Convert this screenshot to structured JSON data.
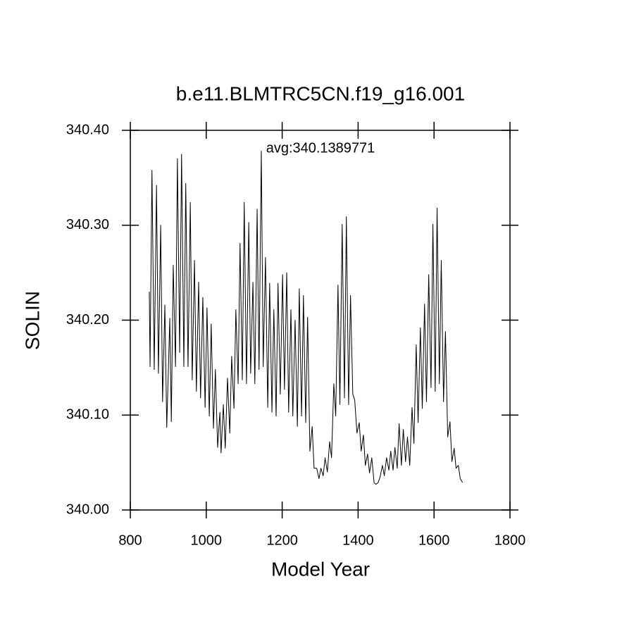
{
  "chart_data": {
    "type": "line",
    "title": "b.e11.BLMTRC5CN.f19_g16.001",
    "annotation": "avg:340.1389771",
    "x_label": "Model Year",
    "y_label": "SOLIN",
    "xlim": [
      800,
      1800
    ],
    "xticks": [
      800,
      1000,
      1200,
      1400,
      1600,
      1800
    ],
    "ylim": [
      340,
      340.4
    ],
    "yticks": [
      {
        "value": 340,
        "label": "340.00"
      },
      {
        "value": 340.1,
        "label": "340.10"
      },
      {
        "value": 340.2,
        "label": "340.20"
      },
      {
        "value": 340.3,
        "label": "340.30"
      },
      {
        "value": 340.4,
        "label": "340.40"
      }
    ],
    "series": [
      {
        "color": "#000000",
        "x": [
          850,
          852,
          857,
          863,
          869,
          874,
          880,
          885,
          891,
          896,
          904,
          908,
          913,
          919,
          924,
          930,
          935,
          941,
          946,
          952,
          958,
          963,
          969,
          974,
          980,
          985,
          991,
          997,
          1002,
          1008,
          1013,
          1019,
          1024,
          1030,
          1036,
          1039,
          1045,
          1050,
          1056,
          1062,
          1067,
          1073,
          1078,
          1084,
          1089,
          1095,
          1100,
          1106,
          1112,
          1117,
          1123,
          1128,
          1134,
          1139,
          1145,
          1150,
          1156,
          1162,
          1167,
          1173,
          1178,
          1184,
          1189,
          1195,
          1201,
          1206,
          1212,
          1217,
          1223,
          1228,
          1234,
          1240,
          1245,
          1251,
          1256,
          1262,
          1267,
          1273,
          1279,
          1284,
          1291,
          1297,
          1302,
          1308,
          1313,
          1319,
          1325,
          1330,
          1336,
          1341,
          1347,
          1352,
          1358,
          1364,
          1369,
          1375,
          1380,
          1386,
          1391,
          1397,
          1403,
          1408,
          1414,
          1419,
          1425,
          1430,
          1436,
          1442,
          1447,
          1453,
          1458,
          1464,
          1469,
          1475,
          1481,
          1486,
          1492,
          1497,
          1503,
          1508,
          1514,
          1519,
          1525,
          1530,
          1536,
          1542,
          1547,
          1553,
          1558,
          1564,
          1569,
          1575,
          1580,
          1586,
          1592,
          1597,
          1603,
          1608,
          1614,
          1619,
          1625,
          1630,
          1636,
          1642,
          1647,
          1653,
          1658,
          1664,
          1669,
          1675
        ],
        "values": [
          340.23,
          340.151,
          340.358,
          340.148,
          340.342,
          340.144,
          340.3,
          340.114,
          340.216,
          340.087,
          340.202,
          340.093,
          340.258,
          340.151,
          340.37,
          340.166,
          340.375,
          340.151,
          340.344,
          340.151,
          340.324,
          340.137,
          340.263,
          340.125,
          340.24,
          340.118,
          340.224,
          340.108,
          340.213,
          340.099,
          340.196,
          340.086,
          340.148,
          340.066,
          340.103,
          340.06,
          340.111,
          340.065,
          340.139,
          340.081,
          340.162,
          340.107,
          340.211,
          340.133,
          340.281,
          340.137,
          340.324,
          340.133,
          340.303,
          340.144,
          340.24,
          340.133,
          340.317,
          340.148,
          340.378,
          340.151,
          340.266,
          340.108,
          340.239,
          340.103,
          340.211,
          340.099,
          340.239,
          340.122,
          340.248,
          340.127,
          340.25,
          340.103,
          340.211,
          340.099,
          340.2,
          340.088,
          340.233,
          340.099,
          340.226,
          340.092,
          340.203,
          340.062,
          340.088,
          340.044,
          340.044,
          340.033,
          340.044,
          340.036,
          340.055,
          340.04,
          340.072,
          340.055,
          340.133,
          340.099,
          340.237,
          340.111,
          340.301,
          340.118,
          340.309,
          340.111,
          340.226,
          340.122,
          340.116,
          340.081,
          340.092,
          340.062,
          340.079,
          340.047,
          340.059,
          340.039,
          340.055,
          340.029,
          340.027,
          340.029,
          340.035,
          340.047,
          340.036,
          340.055,
          340.042,
          340.062,
          340.042,
          340.066,
          340.044,
          340.091,
          340.047,
          340.085,
          340.051,
          340.077,
          340.047,
          340.108,
          340.07,
          340.174,
          340.092,
          340.192,
          340.107,
          340.217,
          340.114,
          340.248,
          340.129,
          340.301,
          340.125,
          340.318,
          340.133,
          340.263,
          340.114,
          340.188,
          340.077,
          340.093,
          340.051,
          340.065,
          340.044,
          340.047,
          340.033,
          340.029
        ]
      }
    ]
  }
}
